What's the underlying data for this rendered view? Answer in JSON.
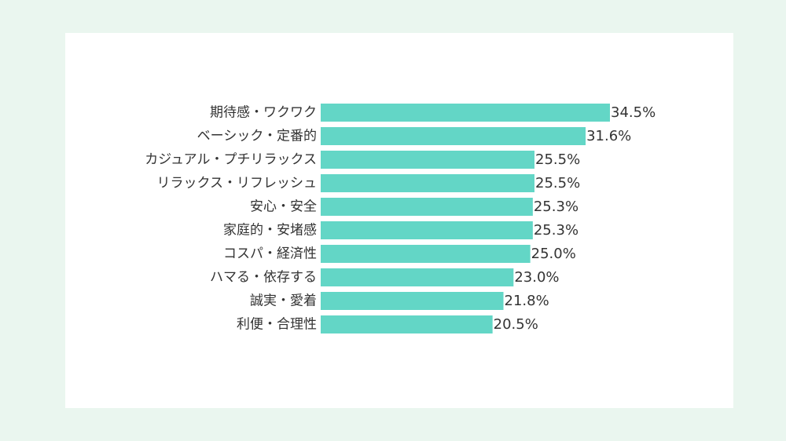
{
  "chart_data": {
    "type": "bar",
    "orientation": "horizontal",
    "categories": [
      "期待感・ワクワク",
      "ベーシック・定番的",
      "カジュアル・プチリラックス",
      "リラックス・リフレッシュ",
      "安心・安全",
      "家庭的・安堵感",
      "コスパ・経済性",
      "ハマる・依存する",
      "誠実・愛着",
      "利便・合理性"
    ],
    "values": [
      34.5,
      31.6,
      25.5,
      25.5,
      25.3,
      25.3,
      25.0,
      23.0,
      21.8,
      20.5
    ],
    "value_labels": [
      "34.5%",
      "31.6%",
      "25.5%",
      "25.5%",
      "25.3%",
      "25.3%",
      "25.0%",
      "23.0%",
      "21.8%",
      "20.5%"
    ],
    "unit": "%",
    "xlim": [
      0,
      34.5
    ],
    "grid": false,
    "bar_color": "#63d6c6"
  }
}
